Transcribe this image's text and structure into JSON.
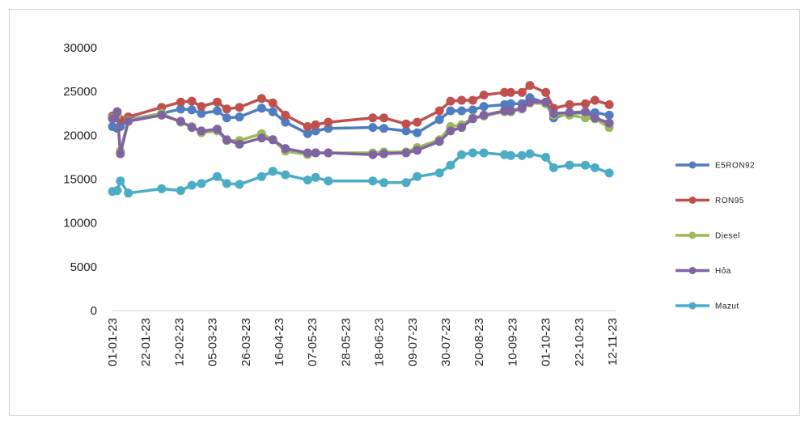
{
  "chart_data": {
    "type": "line",
    "title": "",
    "xlabel": "",
    "ylabel": "",
    "ylim": [
      0,
      30000
    ],
    "yticks": [
      0,
      5000,
      10000,
      15000,
      20000,
      25000,
      30000
    ],
    "ytick_labels": [
      "0",
      "5000",
      "10000",
      "15000",
      "20000",
      "25000",
      "30000"
    ],
    "xtick_labels": [
      "01-01-23",
      "22-01-23",
      "12-02-23",
      "05-03-23",
      "26-03-23",
      "16-04-23",
      "07-05-23",
      "28-05-23",
      "18-06-23",
      "09-07-23",
      "30-07-23",
      "20-08-23",
      "10-09-23",
      "01-10-23",
      "22-10-23",
      "12-11-23"
    ],
    "grid": false,
    "legend_position": "right",
    "x_dates": [
      "2023-01-01",
      "2023-01-04",
      "2023-01-06",
      "2023-01-11",
      "2023-02-01",
      "2023-02-13",
      "2023-02-20",
      "2023-02-26",
      "2023-03-08",
      "2023-03-14",
      "2023-03-22",
      "2023-04-05",
      "2023-04-12",
      "2023-04-20",
      "2023-05-04",
      "2023-05-09",
      "2023-05-17",
      "2023-06-14",
      "2023-06-21",
      "2023-07-05",
      "2023-07-12",
      "2023-07-26",
      "2023-08-02",
      "2023-08-09",
      "2023-08-16",
      "2023-08-23",
      "2023-09-05",
      "2023-09-09",
      "2023-09-16",
      "2023-09-21",
      "2023-10-01",
      "2023-10-06",
      "2023-10-16",
      "2023-10-26",
      "2023-11-01",
      "2023-11-10"
    ],
    "series": [
      {
        "name": "E5RON92",
        "color": "#4f7dc1",
        "values": [
          21000,
          20800,
          21000,
          21800,
          22500,
          23000,
          22900,
          22500,
          22800,
          22000,
          22100,
          23100,
          22700,
          21500,
          20200,
          20500,
          20800,
          20900,
          20800,
          20500,
          20300,
          21800,
          22800,
          22800,
          22900,
          23300,
          23500,
          23600,
          23600,
          24300,
          23700,
          22000,
          22500,
          22600,
          22600,
          22300
        ]
      },
      {
        "name": "RON95",
        "color": "#c0504d",
        "values": [
          22200,
          22000,
          21800,
          22100,
          23200,
          23800,
          23900,
          23300,
          23800,
          23000,
          23200,
          24200,
          23700,
          22300,
          21000,
          21200,
          21500,
          22000,
          22000,
          21300,
          21500,
          22800,
          23900,
          24000,
          24000,
          24600,
          24900,
          24900,
          24900,
          25700,
          24900,
          23100,
          23500,
          23600,
          24000,
          23500
        ]
      },
      {
        "name": "Diesel",
        "color": "#9bbb59",
        "values": [
          22000,
          22300,
          18200,
          21700,
          22500,
          21500,
          21000,
          20300,
          20500,
          19400,
          19400,
          20200,
          19500,
          18200,
          17800,
          18000,
          18000,
          18000,
          18100,
          18100,
          18600,
          19500,
          21000,
          21200,
          22000,
          22200,
          22700,
          22700,
          23000,
          23700,
          23600,
          22300,
          22300,
          22000,
          21900,
          20900
        ]
      },
      {
        "name": "Hỏa",
        "color": "#8064a2",
        "values": [
          21900,
          22700,
          17900,
          21600,
          22300,
          21600,
          20900,
          20500,
          20700,
          19500,
          19000,
          19700,
          19500,
          18500,
          18000,
          18000,
          18000,
          17800,
          17900,
          18000,
          18300,
          19300,
          20500,
          20900,
          21900,
          22300,
          22800,
          22800,
          23100,
          23800,
          23800,
          22500,
          22600,
          22700,
          22000,
          21400
        ]
      },
      {
        "name": "Mazut",
        "color": "#4bacc6",
        "values": [
          13600,
          13700,
          14800,
          13400,
          13900,
          13700,
          14300,
          14500,
          15300,
          14500,
          14400,
          15300,
          15900,
          15500,
          14900,
          15200,
          14800,
          14800,
          14600,
          14600,
          15300,
          15700,
          16600,
          17800,
          18000,
          18000,
          17800,
          17700,
          17700,
          17900,
          17500,
          16300,
          16600,
          16600,
          16300,
          15700
        ]
      }
    ]
  }
}
